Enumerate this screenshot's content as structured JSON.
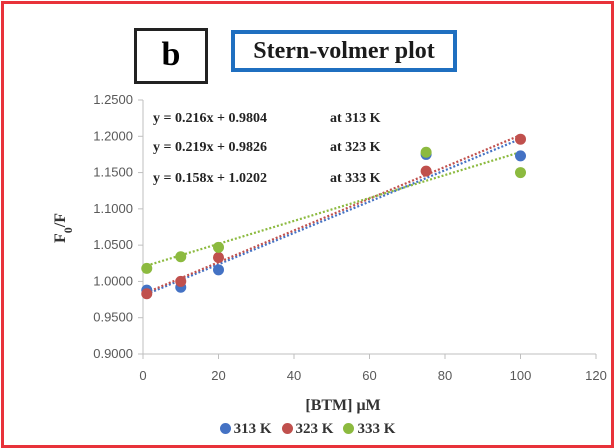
{
  "panel_label": "b",
  "chart_data": {
    "type": "scatter",
    "title": "Stern-volmer plot",
    "xlabel": "[BTM] μM",
    "ylabel": "F0/F",
    "xlim": [
      0,
      120
    ],
    "ylim": [
      0.9,
      1.25
    ],
    "xticks": [
      "0",
      "20",
      "40",
      "60",
      "80",
      "100",
      "120"
    ],
    "yticks": [
      "0.9000",
      "0.9500",
      "1.0000",
      "1.0500",
      "1.1000",
      "1.1500",
      "1.2000",
      "1.2500"
    ],
    "grid": false,
    "legend_position": "bottom",
    "series": [
      {
        "name": "313 K",
        "color": "#4472c4",
        "x": [
          1,
          10,
          20,
          75,
          100
        ],
        "y": [
          0.988,
          0.992,
          1.016,
          1.175,
          1.173
        ],
        "equation": "y = 0.216x + 0.9804",
        "temp_label": "at 313 K",
        "slope": 0.00216,
        "intercept": 0.9804
      },
      {
        "name": "323 K",
        "color": "#c0504d",
        "x": [
          1,
          10,
          20,
          75,
          100
        ],
        "y": [
          0.983,
          1.0,
          1.033,
          1.152,
          1.196
        ],
        "equation": "y = 0.219x + 0.9826",
        "temp_label": "at 323 K",
        "slope": 0.00219,
        "intercept": 0.9826
      },
      {
        "name": "333 K",
        "color": "#8cba3f",
        "x": [
          1,
          10,
          20,
          75,
          100
        ],
        "y": [
          1.018,
          1.034,
          1.047,
          1.178,
          1.15
        ],
        "equation": "y = 0.158x + 1.0202",
        "temp_label": "at 333 K",
        "slope": 0.00158,
        "intercept": 1.0202
      }
    ]
  }
}
